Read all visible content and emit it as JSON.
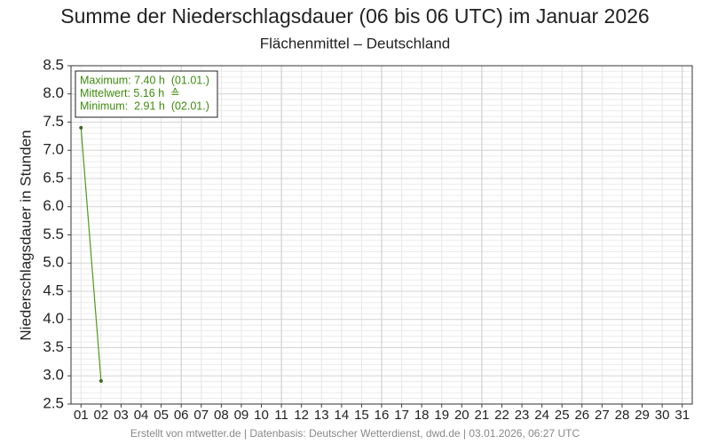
{
  "chart_data": {
    "type": "line",
    "title": "Summe der Niederschlagsdauer (06 bis 06 UTC) im Januar 2026",
    "subtitle": "Flächenmittel – Deutschland",
    "y_label": "Niederschlagsdauer in Stunden",
    "annotations": [
      "Maximum: 7.40 h  (01.01.)",
      "Mittelwert: 5.16 h  ≙",
      "Minimum:  2.91 h  (02.01.)"
    ],
    "footer": "Erstellt von mtwetter.de | Datenbasis: Deutscher Wetterdienst, dwd.de | 03.01.2026, 06:27 UTC",
    "categories": [
      "01",
      "02",
      "03",
      "04",
      "05",
      "06",
      "07",
      "08",
      "09",
      "10",
      "11",
      "12",
      "13",
      "14",
      "15",
      "16",
      "17",
      "18",
      "19",
      "20",
      "21",
      "22",
      "23",
      "24",
      "25",
      "26",
      "27",
      "28",
      "29",
      "30",
      "31"
    ],
    "series": [
      {
        "name": "Niederschlagsdauer",
        "color": "#4d9a1c",
        "values": [
          7.4,
          2.91,
          null,
          null,
          null,
          null,
          null,
          null,
          null,
          null,
          null,
          null,
          null,
          null,
          null,
          null,
          null,
          null,
          null,
          null,
          null,
          null,
          null,
          null,
          null,
          null,
          null,
          null,
          null,
          null,
          null
        ]
      }
    ],
    "ylim": [
      2.5,
      8.5
    ],
    "yticks": [
      2.5,
      {
        "value": 3,
        "label": "3.0"
      },
      3.5,
      {
        "value": 4,
        "label": "4.0"
      },
      4.5,
      {
        "value": 5,
        "label": "5.0"
      },
      5.5,
      {
        "value": 6,
        "label": "6.0"
      },
      6.5,
      {
        "value": 7,
        "label": "7.0"
      },
      7.5,
      {
        "value": 8,
        "label": "8.0"
      },
      8.5
    ],
    "grid": true
  }
}
